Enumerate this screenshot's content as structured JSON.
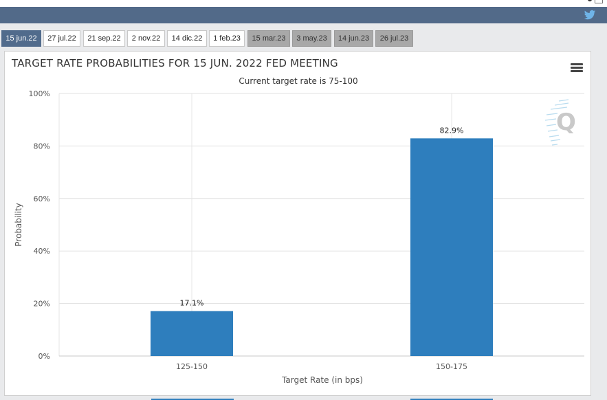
{
  "tabs": [
    {
      "label": "15 jun.22",
      "state": "active"
    },
    {
      "label": "27 jul.22",
      "state": "normal"
    },
    {
      "label": "21 sep.22",
      "state": "normal"
    },
    {
      "label": "2 nov.22",
      "state": "normal"
    },
    {
      "label": "14 dic.22",
      "state": "normal"
    },
    {
      "label": "1 feb.23",
      "state": "normal"
    },
    {
      "label": "15 mar.23",
      "state": "gray"
    },
    {
      "label": "3 may.23",
      "state": "gray"
    },
    {
      "label": "14 jun.23",
      "state": "gray"
    },
    {
      "label": "26 jul.23",
      "state": "gray"
    }
  ],
  "header": {
    "icon": "twitter-icon",
    "bar_color": "#526a89"
  },
  "panel": {
    "menu_icon": "hamburger-menu-icon",
    "watermark_icon": "q-watermark-icon"
  },
  "chart_data": {
    "type": "bar",
    "title": "TARGET RATE PROBABILITIES FOR 15 JUN. 2022 FED MEETING",
    "subtitle": "Current target rate is 75-100",
    "categories": [
      "125-150",
      "150-175"
    ],
    "values": [
      17.1,
      82.9
    ],
    "data_labels": [
      "17.1%",
      "82.9%"
    ],
    "xlabel": "Target Rate (in bps)",
    "ylabel": "Probability",
    "ylim": [
      0,
      100
    ],
    "yticks": [
      "0%",
      "20%",
      "40%",
      "60%",
      "80%",
      "100%"
    ],
    "grid": true,
    "bar_color": "#2e7ebd"
  }
}
